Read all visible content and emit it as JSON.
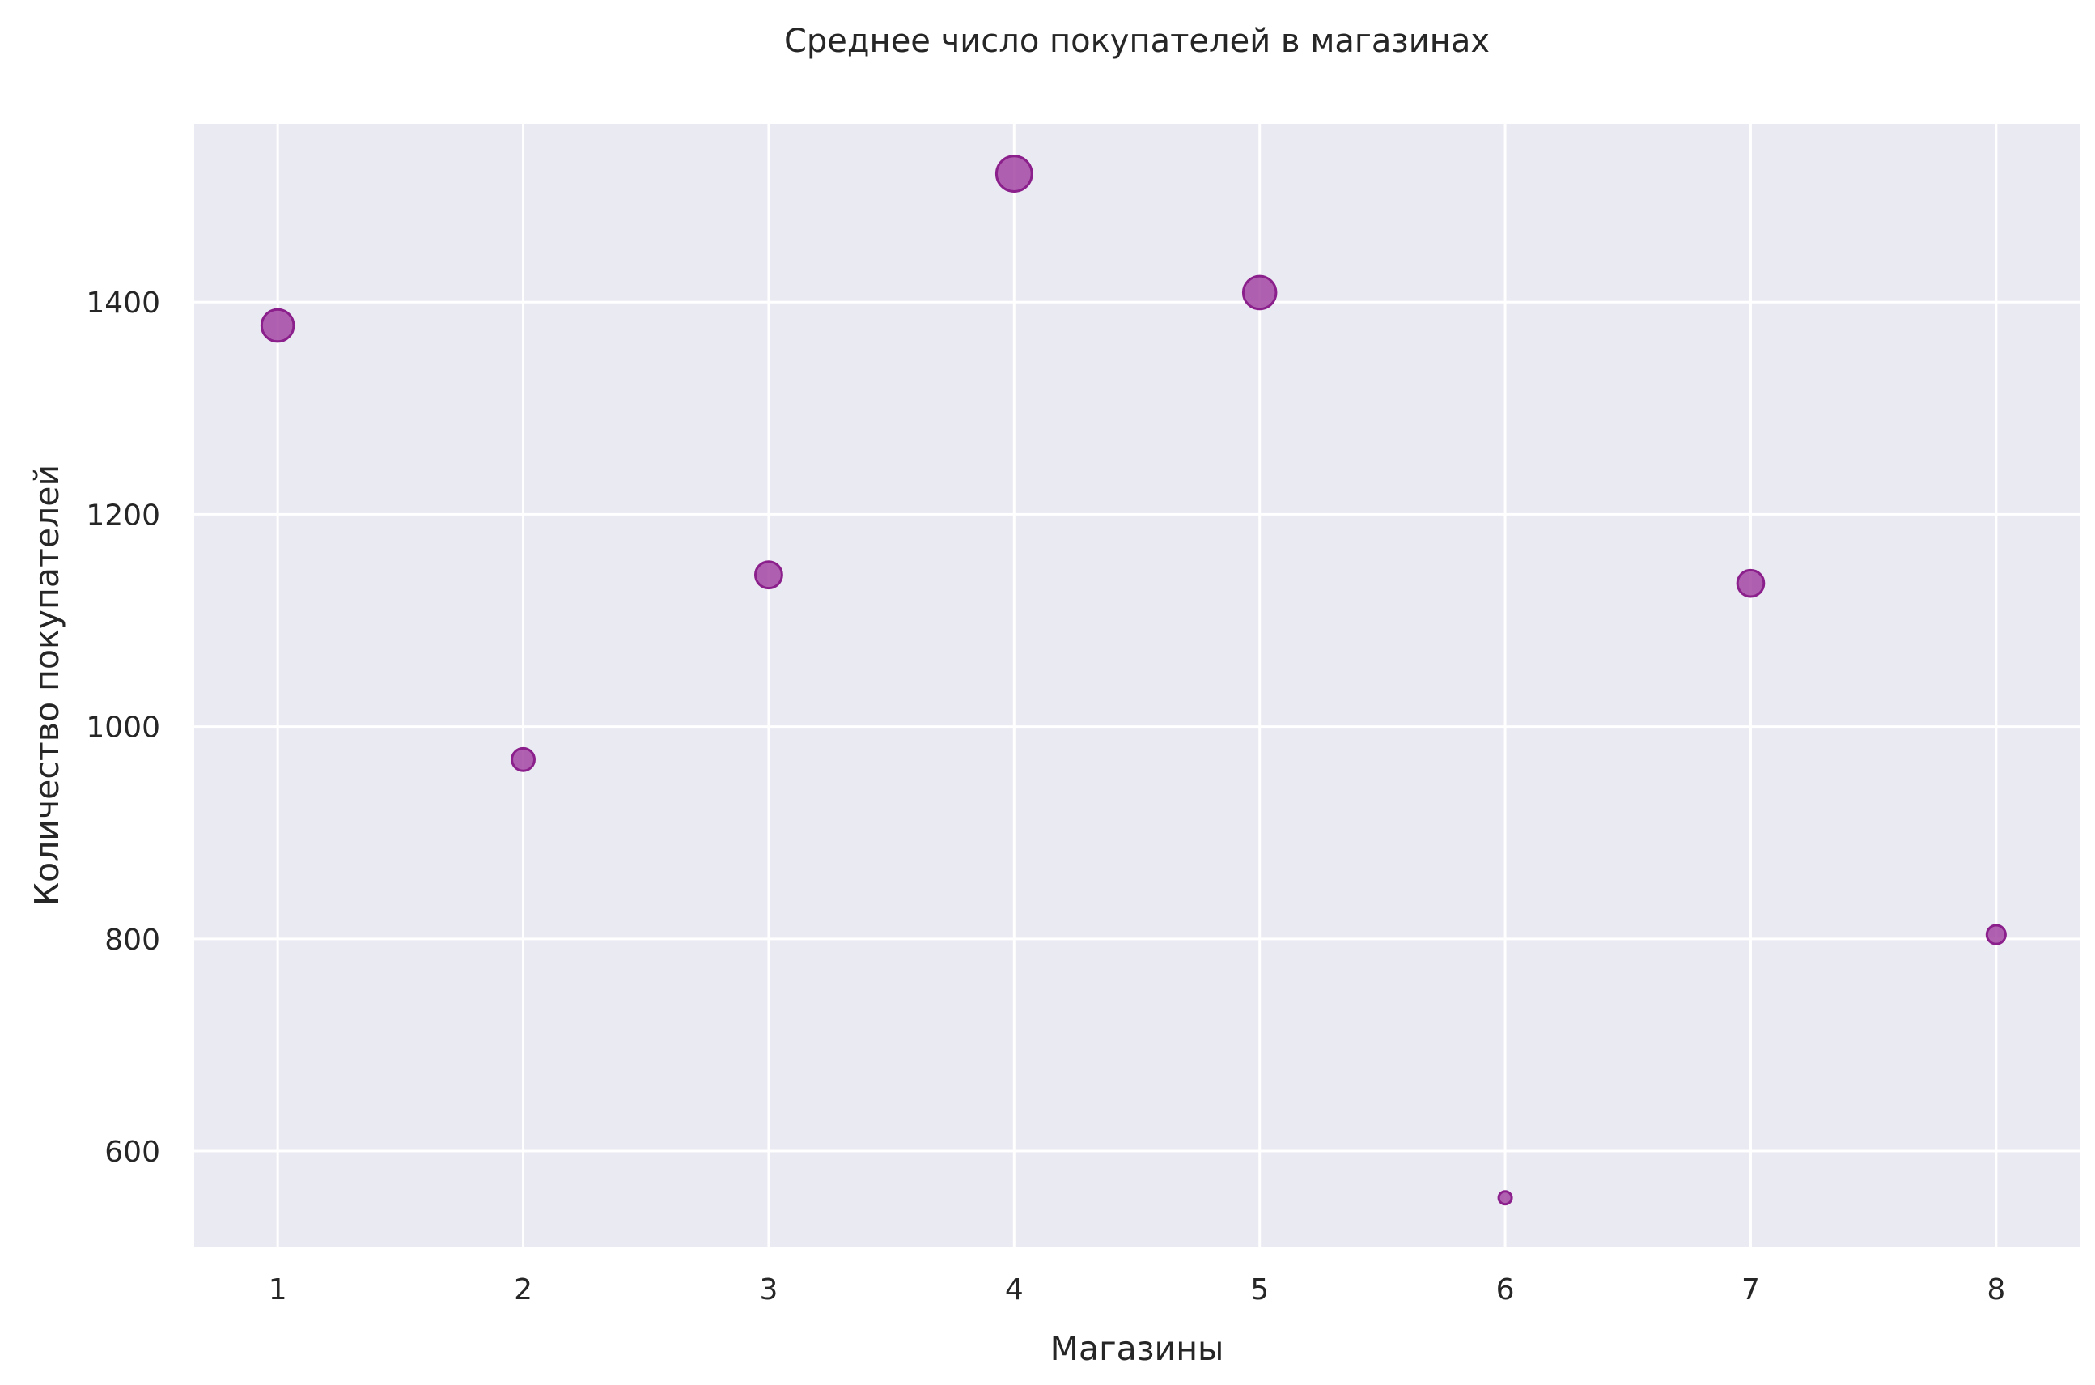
{
  "chart_data": {
    "type": "scatter",
    "title": "Среднее число покупателей в магазинах",
    "xlabel": "Магазины",
    "ylabel": "Количество покупателей",
    "x": [
      1,
      2,
      3,
      4,
      5,
      6,
      7,
      8
    ],
    "y": [
      1378,
      969,
      1143,
      1521,
      1409,
      556,
      1135,
      804
    ],
    "size_by_value": true,
    "xlim": [
      0.66,
      8.34
    ],
    "ylim": [
      510,
      1568
    ],
    "x_ticks": [
      "1",
      "2",
      "3",
      "4",
      "5",
      "6",
      "7",
      "8"
    ],
    "y_ticks": [
      "600",
      "800",
      "1000",
      "1200",
      "1400"
    ],
    "grid": true,
    "legend": false,
    "colors": {
      "marker_fill": "#a347a3",
      "marker_edge": "#8b1f8b",
      "plot_background": "#eaeaf2",
      "grid": "#ffffff",
      "text": "#262626"
    }
  }
}
